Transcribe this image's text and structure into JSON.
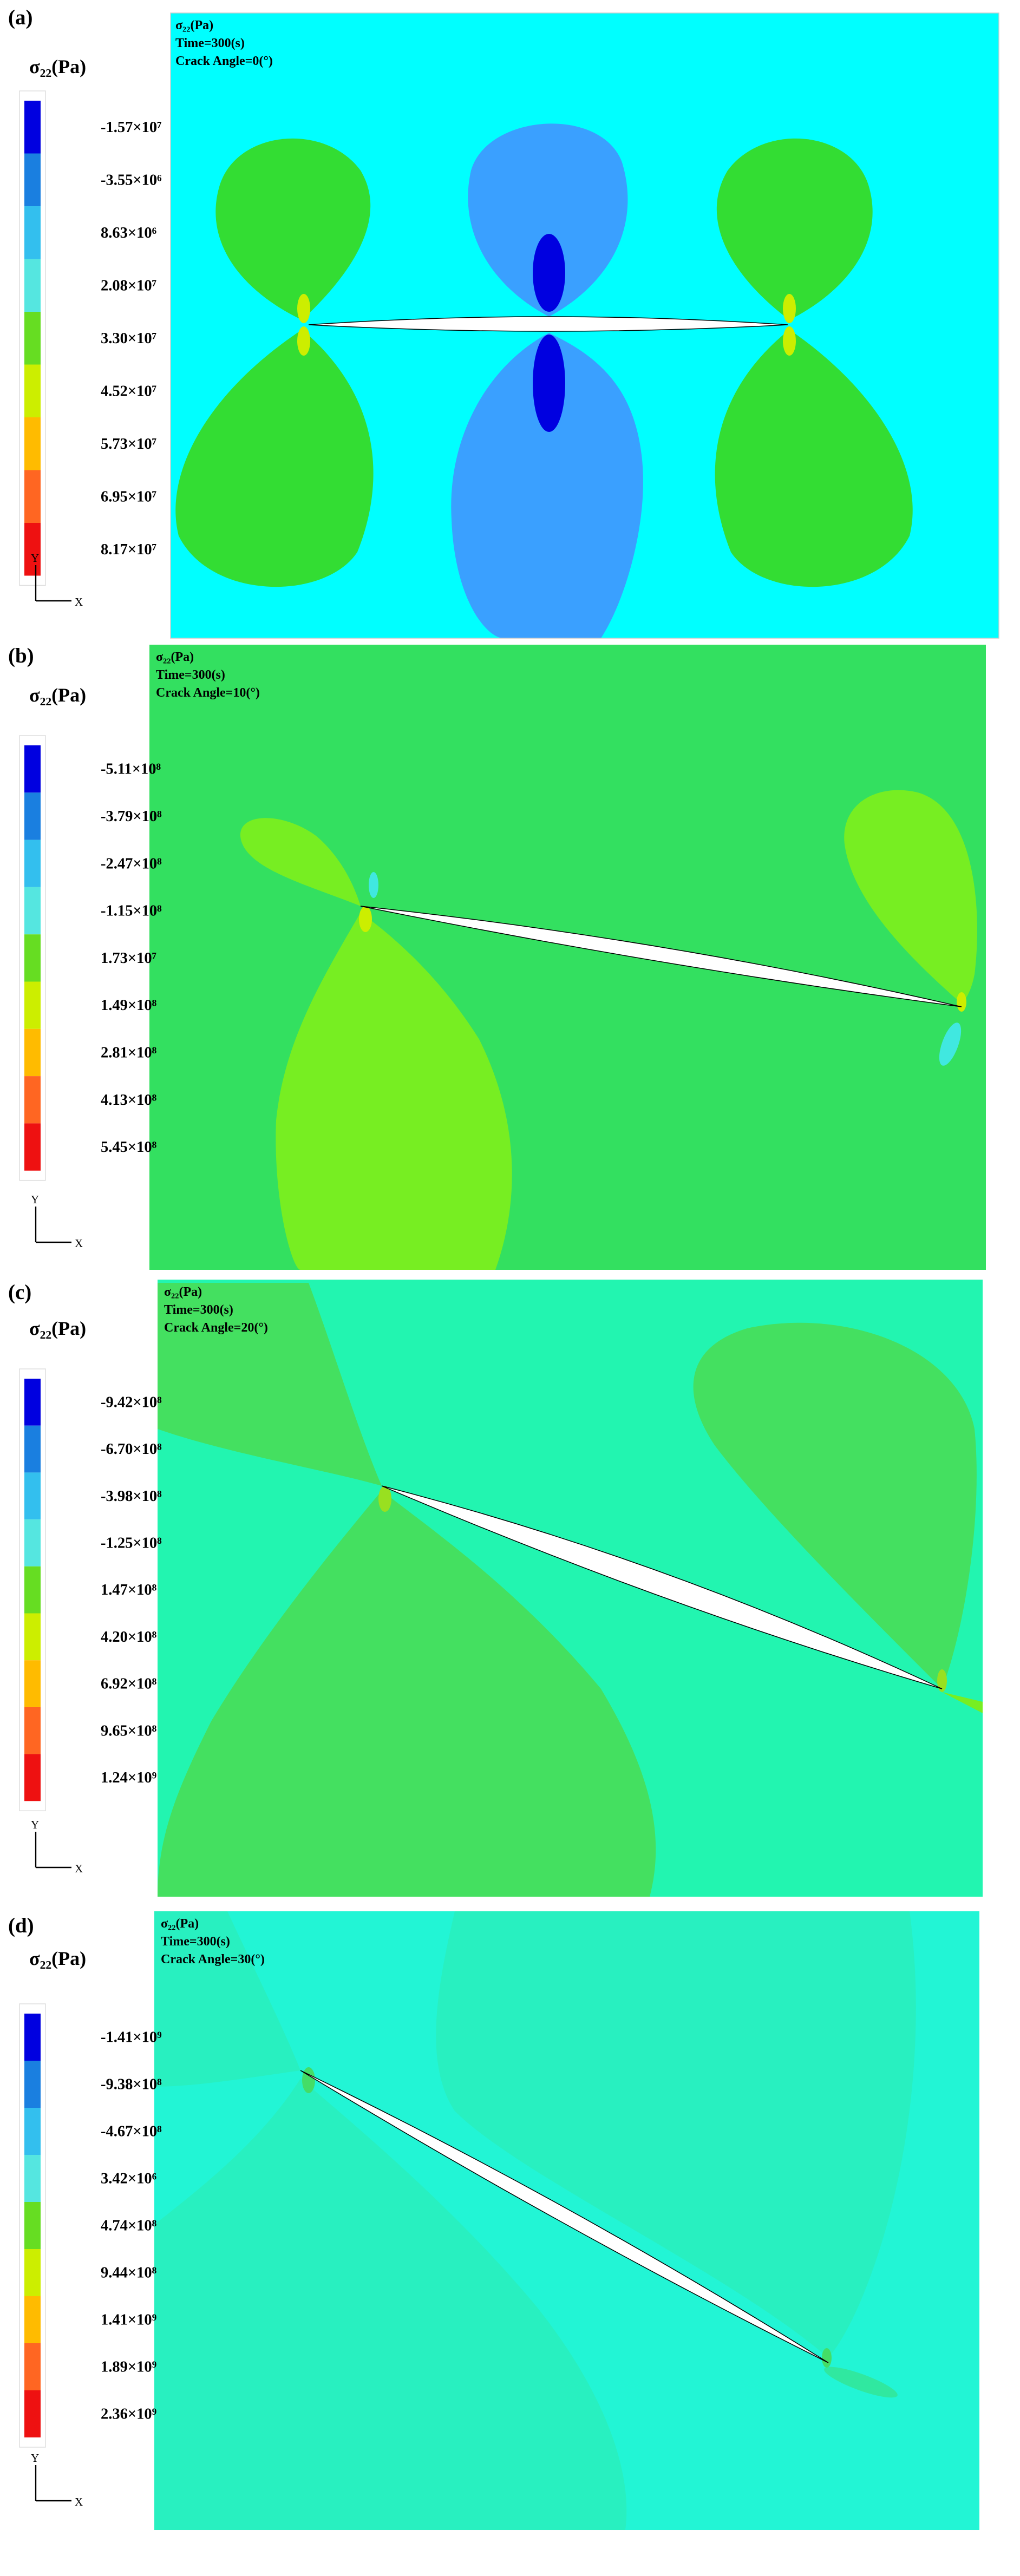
{
  "panels": [
    {
      "label": "(a)",
      "legend_title": "σ₂₂(Pa)",
      "legend_labels": [
        "-1.57×10⁷",
        "-3.55×10⁶",
        "8.63×10⁶",
        "2.08×10⁷",
        "3.30×10⁷",
        "4.52×10⁷",
        "5.73×10⁷",
        "6.95×10⁷",
        "8.17×10⁷"
      ],
      "header": [
        "σ₂₂(Pa)",
        "Time=300(s)",
        "Crack Angle=0(°)"
      ],
      "axis_y": "Y",
      "axis_x": "X"
    },
    {
      "label": "(b)",
      "legend_title": "σ₂₂(Pa)",
      "legend_labels": [
        "-5.11×10⁸",
        "-3.79×10⁸",
        "-2.47×10⁸",
        "-1.15×10⁸",
        "1.73×10⁷",
        "1.49×10⁸",
        "2.81×10⁸",
        "4.13×10⁸",
        "5.45×10⁸"
      ],
      "header": [
        "σ₂₂(Pa)",
        "Time=300(s)",
        "Crack Angle=10(°)"
      ],
      "axis_y": "Y",
      "axis_x": "X"
    },
    {
      "label": "(c)",
      "legend_title": "σ₂₂(Pa)",
      "legend_labels": [
        "-9.42×10⁸",
        "-6.70×10⁸",
        "-3.98×10⁸",
        "-1.25×10⁸",
        "1.47×10⁸",
        "4.20×10⁸",
        "6.92×10⁸",
        "9.65×10⁸",
        "1.24×10⁹"
      ],
      "header": [
        "σ₂₂(Pa)",
        "Time=300(s)",
        "Crack Angle=20(°)"
      ],
      "axis_y": "Y",
      "axis_x": "X"
    },
    {
      "label": "(d)",
      "legend_title": "σ₂₂(Pa)",
      "legend_labels": [
        "-1.41×10⁹",
        "-9.38×10⁸",
        "-4.67×10⁸",
        "3.42×10⁶",
        "4.74×10⁸",
        "9.44×10⁸",
        "1.41×10⁹",
        "1.89×10⁹",
        "2.36×10⁹"
      ],
      "header": [
        "σ₂₂(Pa)",
        "Time=300(s)",
        "Crack Angle=30(°)"
      ],
      "axis_y": "Y",
      "axis_x": "X"
    }
  ]
}
